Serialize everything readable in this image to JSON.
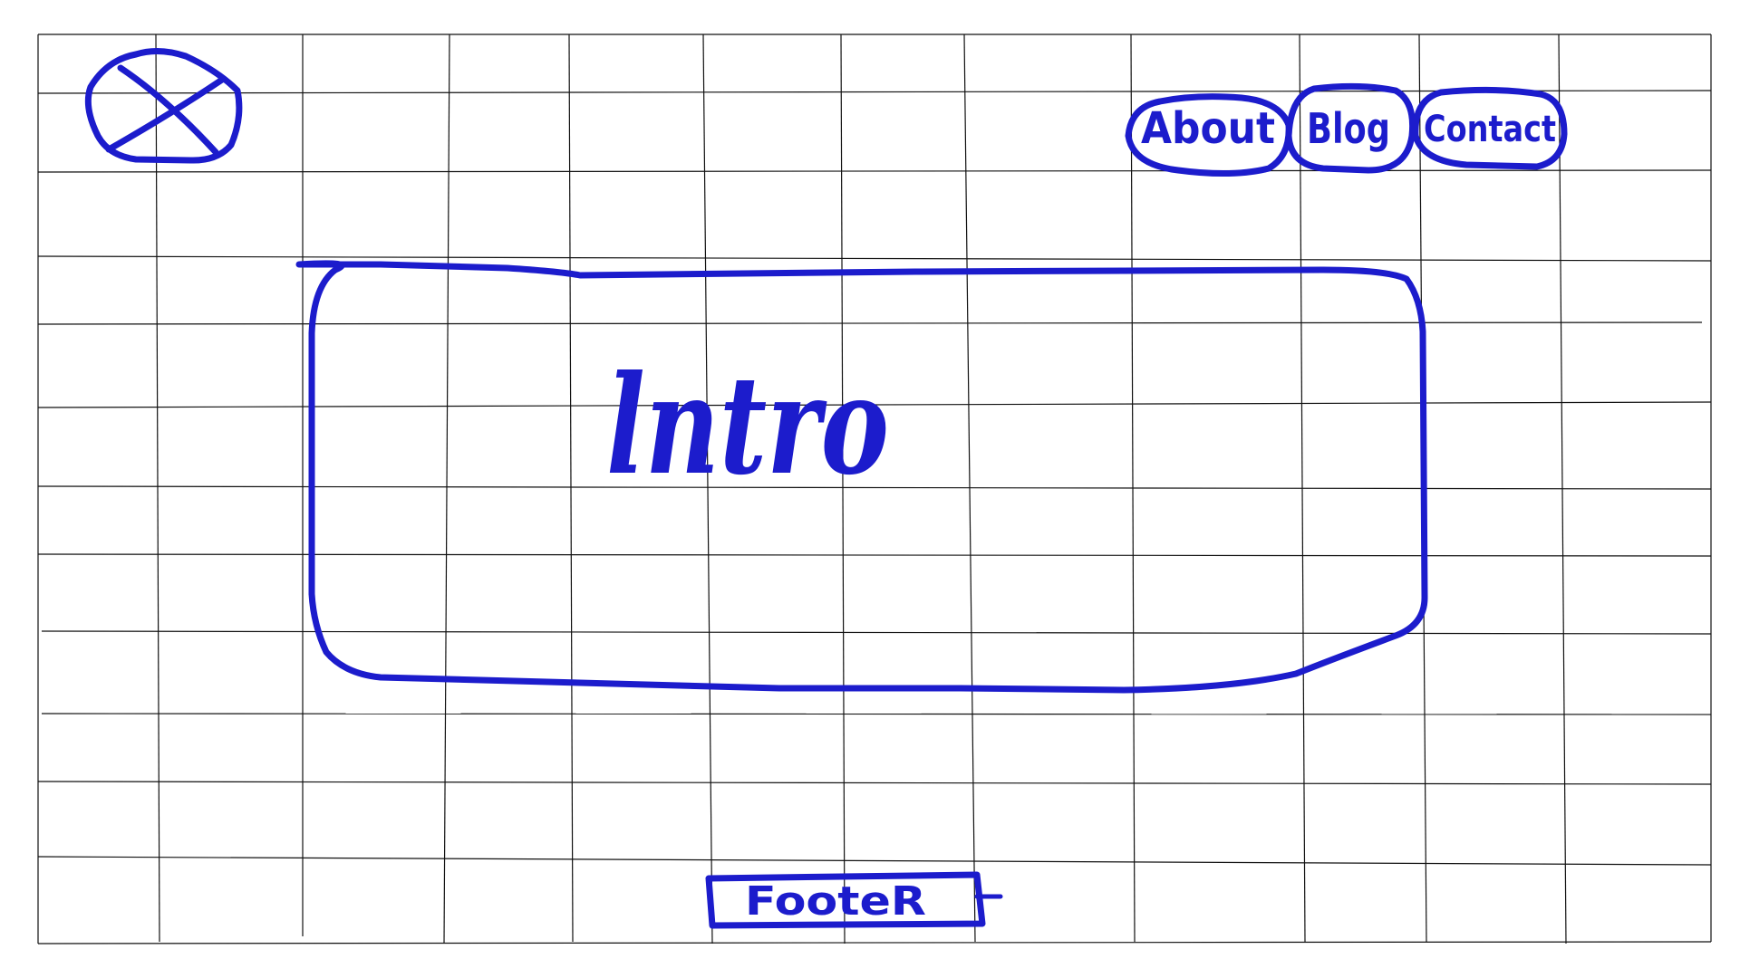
{
  "ink_color": "#1c1ccc",
  "grid_color": "#111111",
  "background_color": "#ffffff",
  "logo": {
    "icon": "logo-placeholder-x-icon"
  },
  "nav": {
    "items": [
      {
        "label": "About",
        "shape": "rounded-outline"
      },
      {
        "label": "Blog",
        "shape": "rounded-outline"
      },
      {
        "label": "Contact",
        "shape": "rounded-outline"
      }
    ]
  },
  "hero": {
    "label": "lntro"
  },
  "footer": {
    "label": "FooteR"
  }
}
